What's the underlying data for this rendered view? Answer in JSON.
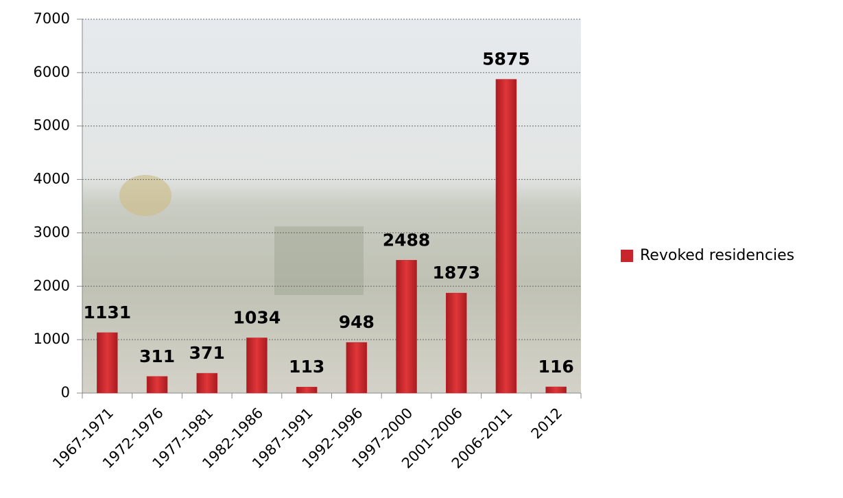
{
  "chart_data": {
    "type": "bar",
    "categories": [
      "1967-1971",
      "1972-1976",
      "1977-1981",
      "1982-1986",
      "1987-1991",
      "1992-1996",
      "1997-2000",
      "2001-2006",
      "2006-2011",
      "2012"
    ],
    "series": [
      {
        "name": "Revoked residencies",
        "color": "#c8262c",
        "values": [
          1131,
          311,
          371,
          1034,
          113,
          948,
          2488,
          1873,
          5875,
          116
        ]
      }
    ],
    "ylim": [
      0,
      7000
    ],
    "yticks": [
      0,
      1000,
      2000,
      3000,
      4000,
      5000,
      6000,
      7000
    ],
    "grid": true,
    "legend": "right"
  }
}
